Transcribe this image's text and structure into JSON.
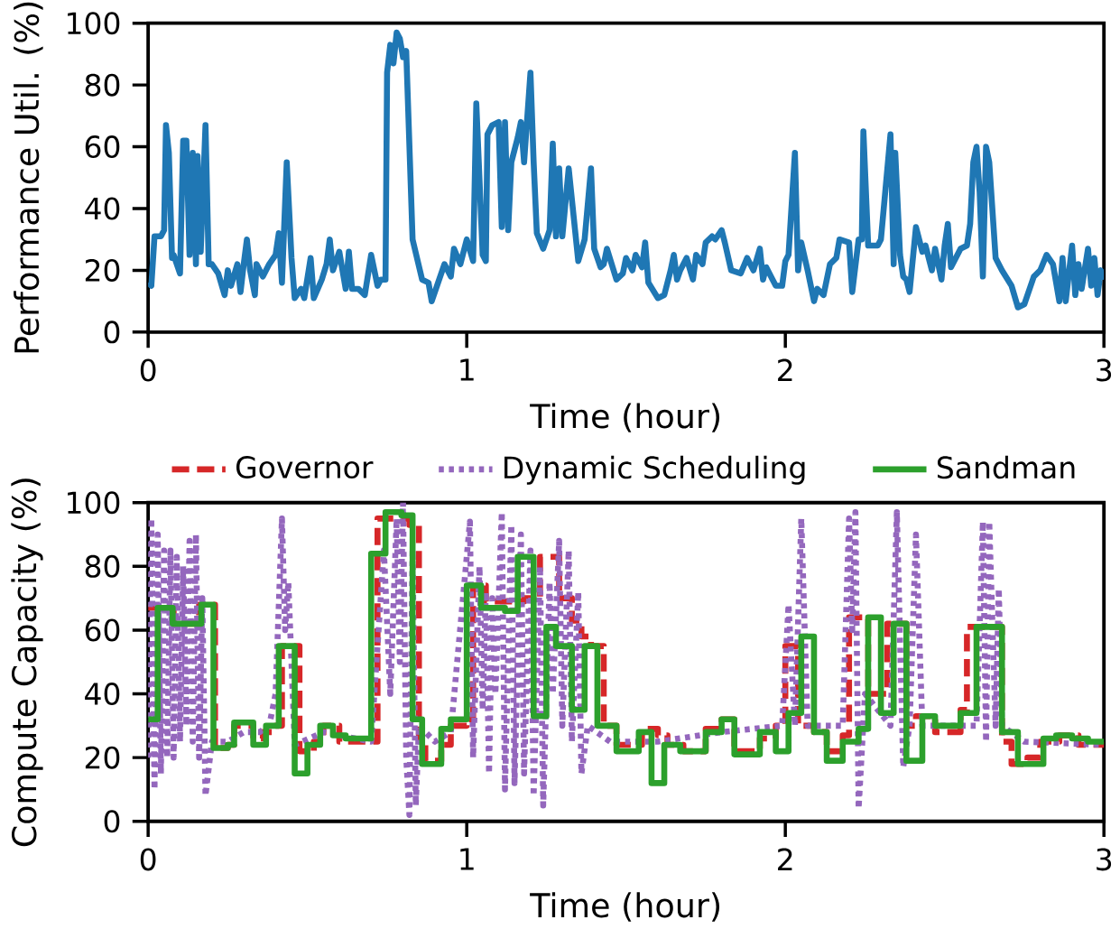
{
  "chart_data": [
    {
      "type": "line",
      "xlabel": "Time (hour)",
      "ylabel": "Performance Util. (%)",
      "color": "#1f77b4",
      "xlim": [
        0,
        3
      ],
      "ylim": [
        0,
        100
      ],
      "xticks": [
        0,
        1,
        2,
        3
      ],
      "yticks": [
        0,
        20,
        40,
        60,
        80,
        100
      ],
      "x": [
        0,
        0.01,
        0.02,
        0.04,
        0.05,
        0.056,
        0.065,
        0.075,
        0.08,
        0.1,
        0.11,
        0.12,
        0.13,
        0.14,
        0.15,
        0.155,
        0.165,
        0.18,
        0.19,
        0.2,
        0.22,
        0.24,
        0.25,
        0.26,
        0.28,
        0.29,
        0.3,
        0.31,
        0.32,
        0.335,
        0.34,
        0.36,
        0.38,
        0.4,
        0.41,
        0.42,
        0.435,
        0.45,
        0.46,
        0.48,
        0.49,
        0.51,
        0.52,
        0.545,
        0.56,
        0.57,
        0.58,
        0.6,
        0.62,
        0.63,
        0.64,
        0.66,
        0.68,
        0.7,
        0.72,
        0.73,
        0.745,
        0.75,
        0.76,
        0.77,
        0.78,
        0.79,
        0.8,
        0.81,
        0.83,
        0.86,
        0.88,
        0.89,
        0.93,
        0.95,
        0.96,
        0.98,
        1.0,
        1.02,
        1.03,
        1.05,
        1.06,
        1.065,
        1.08,
        1.1,
        1.11,
        1.12,
        1.13,
        1.14,
        1.16,
        1.17,
        1.18,
        1.2,
        1.21,
        1.22,
        1.24,
        1.26,
        1.27,
        1.28,
        1.29,
        1.3,
        1.32,
        1.35,
        1.37,
        1.39,
        1.4,
        1.42,
        1.43,
        1.44,
        1.47,
        1.49,
        1.5,
        1.52,
        1.53,
        1.55,
        1.56,
        1.57,
        1.6,
        1.62,
        1.64,
        1.65,
        1.66,
        1.67,
        1.69,
        1.71,
        1.72,
        1.74,
        1.75,
        1.77,
        1.78,
        1.8,
        1.81,
        1.83,
        1.86,
        1.88,
        1.9,
        1.92,
        1.93,
        1.94,
        1.96,
        1.97,
        1.99,
        2.0,
        2.01,
        2.03,
        2.04,
        2.05,
        2.07,
        2.09,
        2.1,
        2.12,
        2.14,
        2.16,
        2.17,
        2.2,
        2.21,
        2.23,
        2.24,
        2.245,
        2.26,
        2.29,
        2.3,
        2.33,
        2.34,
        2.345,
        2.36,
        2.37,
        2.38,
        2.39,
        2.41,
        2.43,
        2.44,
        2.46,
        2.47,
        2.49,
        2.5,
        2.51,
        2.52,
        2.55,
        2.57,
        2.58,
        2.59,
        2.6,
        2.61,
        2.62,
        2.63,
        2.64,
        2.66,
        2.68,
        2.71,
        2.73,
        2.75,
        2.78,
        2.8,
        2.82,
        2.84,
        2.86,
        2.87,
        2.88,
        2.9,
        2.91,
        2.92,
        2.93,
        2.95,
        2.96,
        2.97,
        2.98,
        2.99,
        3.0
      ],
      "values": [
        16,
        15,
        31,
        31,
        33,
        67,
        58,
        24,
        25,
        19,
        62,
        62,
        25,
        58,
        22,
        57,
        26,
        67,
        22,
        22,
        19,
        12,
        20,
        15,
        22,
        13,
        22,
        30,
        20,
        12,
        22,
        18,
        22,
        25,
        32,
        16,
        55,
        24,
        11,
        14,
        11,
        24,
        11,
        17,
        22,
        30,
        20,
        26,
        14,
        26,
        14,
        14,
        12,
        25,
        15,
        17,
        17,
        84,
        93,
        87,
        97,
        95,
        89,
        91,
        30,
        17,
        16,
        10,
        22,
        18,
        27,
        22,
        30,
        23,
        74,
        25,
        23,
        64,
        67,
        68,
        34,
        68,
        33,
        55,
        63,
        68,
        55,
        84,
        55,
        32,
        27,
        33,
        61,
        31,
        53,
        31,
        53,
        23,
        30,
        53,
        27,
        21,
        22,
        27,
        17,
        19,
        24,
        20,
        25,
        21,
        29,
        16,
        11,
        12,
        20,
        25,
        17,
        20,
        24,
        17,
        25,
        22,
        29,
        31,
        30,
        33,
        29,
        20,
        19,
        24,
        20,
        27,
        17,
        21,
        17,
        15,
        15,
        23,
        25,
        58,
        20,
        29,
        20,
        10,
        14,
        12,
        22,
        24,
        30,
        29,
        13,
        30,
        30,
        65,
        28,
        28,
        30,
        64,
        22,
        58,
        25,
        18,
        17,
        13,
        34,
        26,
        28,
        20,
        27,
        17,
        28,
        35,
        21,
        27,
        28,
        35,
        55,
        60,
        45,
        18,
        60,
        55,
        24,
        20,
        15,
        8,
        9,
        18,
        20,
        25,
        22,
        10,
        24,
        10,
        28,
        12,
        22,
        14,
        27,
        15,
        24,
        12,
        20,
        17
      ]
    },
    {
      "type": "step",
      "xlabel": "Time (hour)",
      "ylabel": "Compute Capacity (%)",
      "xlim": [
        0,
        3
      ],
      "ylim": [
        0,
        100
      ],
      "xticks": [
        0,
        1,
        2,
        3
      ],
      "yticks": [
        0,
        20,
        40,
        60,
        80,
        100
      ],
      "legend": "top",
      "series": [
        {
          "name": "Governor",
          "color": "#d62728",
          "line_style": "dashed",
          "x": [
            0,
            0.08,
            0.16,
            0.21,
            0.25,
            0.27,
            0.33,
            0.36,
            0.4,
            0.42,
            0.475,
            0.52,
            0.55,
            0.6,
            0.72,
            0.82,
            0.85,
            0.87,
            0.92,
            0.95,
            1.0,
            1.02,
            1.06,
            1.18,
            1.23,
            1.29,
            1.33,
            1.36,
            1.39,
            1.43,
            1.47,
            1.55,
            1.6,
            1.63,
            1.68,
            1.75,
            1.8,
            1.84,
            1.92,
            1.97,
            2.0,
            2.04,
            2.09,
            2.13,
            2.18,
            2.2,
            2.26,
            2.32,
            2.38,
            2.41,
            2.47,
            2.55,
            2.57,
            2.68,
            2.71,
            2.76,
            2.8,
            2.86,
            2.92,
            3.0
          ],
          "values": [
            67,
            62,
            68,
            23,
            24,
            30,
            26,
            28,
            30,
            55,
            22,
            25,
            30,
            25,
            95,
            93,
            26,
            19,
            24,
            30,
            32,
            74,
            69,
            70,
            83,
            70,
            63,
            58,
            55,
            30,
            24,
            29,
            27,
            24,
            22,
            29,
            32,
            22,
            26,
            30,
            55,
            30,
            28,
            22,
            27,
            64,
            40,
            62,
            30,
            33,
            28,
            35,
            61,
            25,
            18,
            20,
            25,
            27,
            24,
            25
          ]
        },
        {
          "name": "Dynamic Scheduling",
          "type": "line",
          "color": "#9467bd",
          "line_style": "dotted",
          "x": [
            0,
            0.01,
            0.02,
            0.03,
            0.04,
            0.05,
            0.06,
            0.07,
            0.08,
            0.09,
            0.1,
            0.11,
            0.12,
            0.13,
            0.14,
            0.15,
            0.16,
            0.17,
            0.18,
            0.2,
            0.25,
            0.3,
            0.35,
            0.38,
            0.4,
            0.42,
            0.43,
            0.44,
            0.46,
            0.55,
            0.6,
            0.7,
            0.73,
            0.74,
            0.76,
            0.78,
            0.79,
            0.8,
            0.81,
            0.82,
            0.83,
            0.84,
            0.85,
            0.9,
            0.95,
            1.01,
            1.02,
            1.04,
            1.05,
            1.06,
            1.07,
            1.08,
            1.09,
            1.11,
            1.12,
            1.14,
            1.15,
            1.17,
            1.18,
            1.2,
            1.21,
            1.23,
            1.24,
            1.26,
            1.27,
            1.29,
            1.3,
            1.32,
            1.33,
            1.35,
            1.36,
            1.38,
            1.45,
            1.6,
            1.8,
            1.99,
            2.01,
            2.03,
            2.05,
            2.07,
            2.18,
            2.2,
            2.21,
            2.22,
            2.23,
            2.25,
            2.33,
            2.35,
            2.37,
            2.39,
            2.41,
            2.43,
            2.6,
            2.62,
            2.63,
            2.64,
            2.66,
            2.67,
            2.68,
            2.75,
            3.0
          ],
          "values": [
            20,
            95,
            10,
            90,
            15,
            85,
            20,
            85,
            20,
            83,
            25,
            80,
            30,
            88,
            25,
            90,
            20,
            70,
            8,
            25,
            25,
            28,
            28,
            30,
            40,
            95,
            60,
            75,
            24,
            28,
            27,
            25,
            70,
            85,
            40,
            95,
            50,
            100,
            20,
            2,
            85,
            5,
            30,
            25,
            28,
            94,
            20,
            80,
            35,
            72,
            15,
            70,
            40,
            97,
            10,
            93,
            12,
            90,
            15,
            85,
            8,
            80,
            5,
            75,
            40,
            88,
            30,
            85,
            25,
            72,
            15,
            30,
            25,
            25,
            28,
            30,
            68,
            30,
            95,
            30,
            30,
            95,
            60,
            97,
            4,
            40,
            30,
            97,
            17,
            30,
            90,
            30,
            30,
            94,
            25,
            94,
            30,
            73,
            30,
            25,
            24
          ]
        },
        {
          "name": "Sandman",
          "color": "#2ca02c",
          "line_style": "solid",
          "x": [
            0,
            0.03,
            0.077,
            0.167,
            0.205,
            0.25,
            0.27,
            0.33,
            0.37,
            0.41,
            0.46,
            0.5,
            0.54,
            0.58,
            0.62,
            0.7,
            0.745,
            0.795,
            0.83,
            0.86,
            0.92,
            0.95,
            1.0,
            1.045,
            1.12,
            1.16,
            1.21,
            1.25,
            1.28,
            1.33,
            1.37,
            1.41,
            1.47,
            1.54,
            1.58,
            1.62,
            1.67,
            1.75,
            1.8,
            1.84,
            1.92,
            1.97,
            2.01,
            2.05,
            2.09,
            2.13,
            2.18,
            2.23,
            2.26,
            2.3,
            2.34,
            2.38,
            2.43,
            2.47,
            2.55,
            2.6,
            2.68,
            2.73,
            2.81,
            2.85,
            2.9,
            2.95,
            3.0
          ],
          "values": [
            32,
            67,
            62,
            68,
            23,
            24,
            31,
            24,
            30,
            55,
            15,
            24,
            30,
            27,
            26,
            84,
            97,
            96,
            32,
            18,
            29,
            32,
            74,
            67,
            66,
            83,
            33,
            61,
            55,
            35,
            55,
            30,
            22,
            28,
            12,
            24,
            22,
            28,
            32,
            21,
            28,
            22,
            34,
            58,
            28,
            19,
            25,
            29,
            64,
            34,
            62,
            19,
            33,
            30,
            34,
            61,
            28,
            18,
            26,
            27,
            26,
            25,
            25
          ]
        }
      ]
    }
  ]
}
